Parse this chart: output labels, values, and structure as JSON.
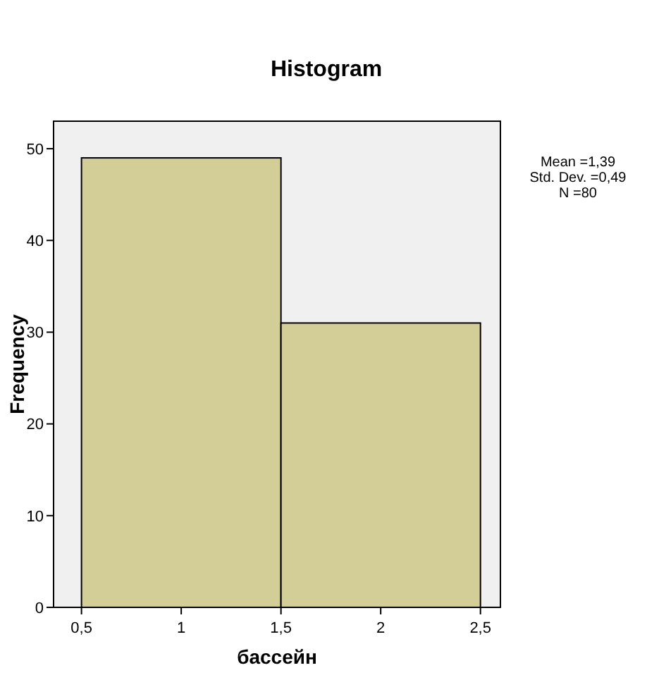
{
  "chart_data": {
    "type": "histogram",
    "title": "Histogram",
    "xlabel": "бассейн",
    "ylabel": "Frequency",
    "bins": [
      0.5,
      1.5,
      2.5
    ],
    "values": [
      49,
      31
    ],
    "color": "#d3ce97",
    "xlim": [
      0.36,
      2.6
    ],
    "xticks": [
      {
        "value": 0.5,
        "label": "0,5"
      },
      {
        "value": 1,
        "label": "1"
      },
      {
        "value": 1.5,
        "label": "1,5"
      },
      {
        "value": 2,
        "label": "2"
      },
      {
        "value": 2.5,
        "label": "2,5"
      }
    ],
    "ylim": [
      0,
      53
    ],
    "yticks": [
      0,
      10,
      20,
      30,
      40,
      50
    ],
    "grid": false,
    "annotations": [
      "Mean =1,39",
      "Std. Dev. =0,49",
      "N =80"
    ]
  }
}
